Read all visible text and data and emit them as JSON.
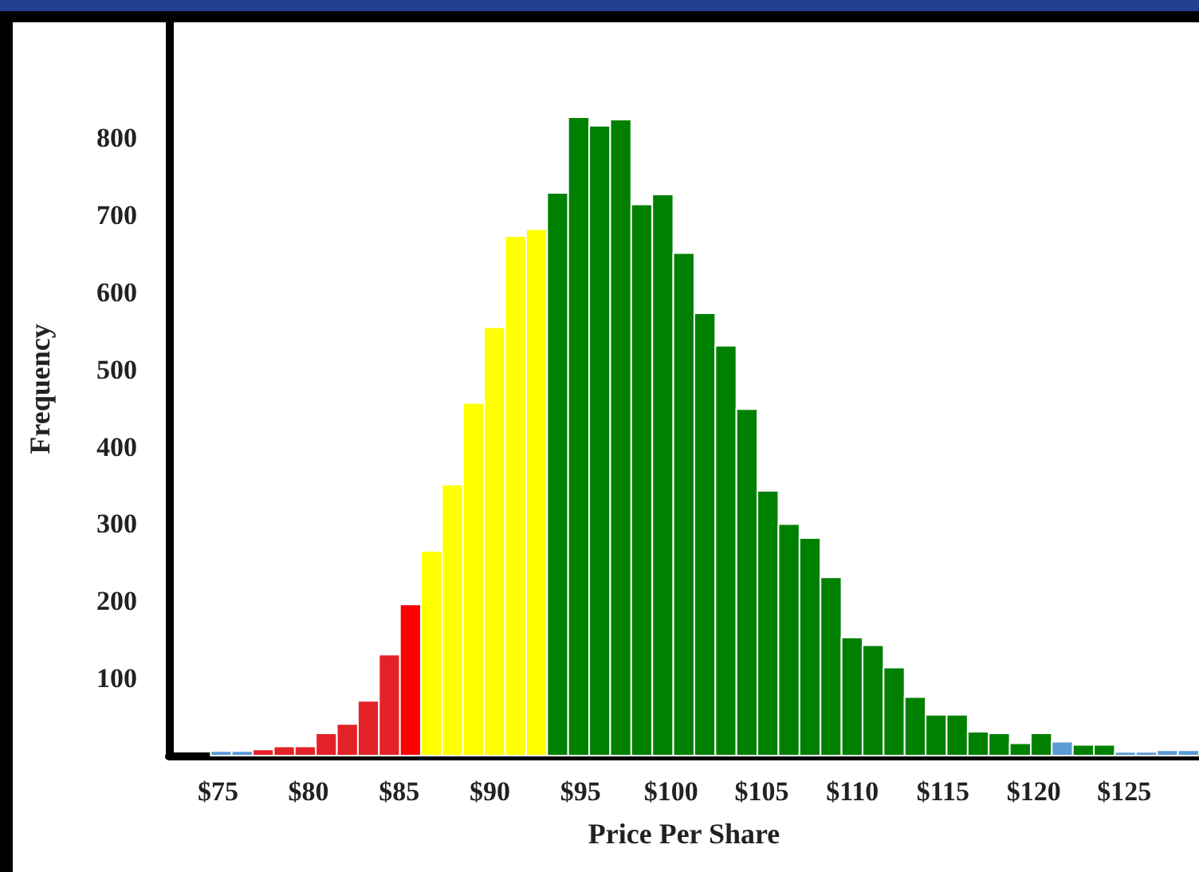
{
  "chart_data": {
    "type": "histogram",
    "xlabel": "Price Per Share",
    "ylabel": "Frequency",
    "bins": [
      74.6,
      75.76,
      76.92,
      78.08,
      79.24,
      80.4,
      81.56,
      82.72,
      83.88,
      85.04,
      86.2,
      87.36,
      88.52,
      89.68,
      90.84,
      92,
      93.16,
      94.32,
      95.48,
      96.64,
      97.8,
      98.96,
      100.12,
      101.28,
      102.44,
      103.6,
      104.76,
      105.92,
      107.08,
      108.24,
      109.4,
      110.56,
      111.72,
      112.88,
      114.04,
      115.2,
      116.36,
      117.52,
      118.68,
      119.84,
      121,
      122.16,
      123.32,
      124.48,
      125.64,
      126.8,
      127.96,
      129.12
    ],
    "values": [
      6,
      6,
      8,
      12,
      12,
      29,
      41,
      71,
      131,
      196,
      265,
      351,
      457,
      555,
      673,
      682,
      729,
      827,
      816,
      824,
      714,
      727,
      651,
      573,
      531,
      449,
      343,
      300,
      282,
      231,
      153,
      143,
      114,
      76,
      53,
      53,
      31,
      29,
      16,
      29,
      18,
      14,
      14,
      5,
      5,
      7,
      7
    ],
    "colors": [
      "#5b9bd5",
      "#5b9bd5",
      "#e32228",
      "#e32228",
      "#e32228",
      "#e32228",
      "#e32228",
      "#e32228",
      "#e32228",
      "#ff0000",
      "#ffff00",
      "#ffff00",
      "#ffff00",
      "#ffff00",
      "#ffff00",
      "#ffff00",
      "#008000",
      "#008000",
      "#008000",
      "#008000",
      "#008000",
      "#008000",
      "#008000",
      "#008000",
      "#008000",
      "#008000",
      "#008000",
      "#008000",
      "#008000",
      "#008000",
      "#008000",
      "#008000",
      "#008000",
      "#008000",
      "#008000",
      "#008000",
      "#008000",
      "#008000",
      "#008000",
      "#008000",
      "#5b9bd5",
      "#008000",
      "#008000",
      "#5b9bd5",
      "#5b9bd5",
      "#5b9bd5",
      "#5b9bd5"
    ],
    "xlim": [
      72.3,
      129.12
    ],
    "xticks": [
      {
        "value": 75,
        "label": "$75"
      },
      {
        "value": 80,
        "label": "$80"
      },
      {
        "value": 85,
        "label": "$85"
      },
      {
        "value": 90,
        "label": "$90"
      },
      {
        "value": 95,
        "label": "$95"
      },
      {
        "value": 100,
        "label": "$100"
      },
      {
        "value": 105,
        "label": "$105"
      },
      {
        "value": 110,
        "label": "$110"
      },
      {
        "value": 115,
        "label": "$115"
      },
      {
        "value": 120,
        "label": "$120"
      },
      {
        "value": 125,
        "label": "$125"
      }
    ],
    "ylim": [
      0,
      950
    ],
    "yticks": [
      100,
      200,
      300,
      400,
      500,
      600,
      700,
      800
    ],
    "grid": false
  }
}
